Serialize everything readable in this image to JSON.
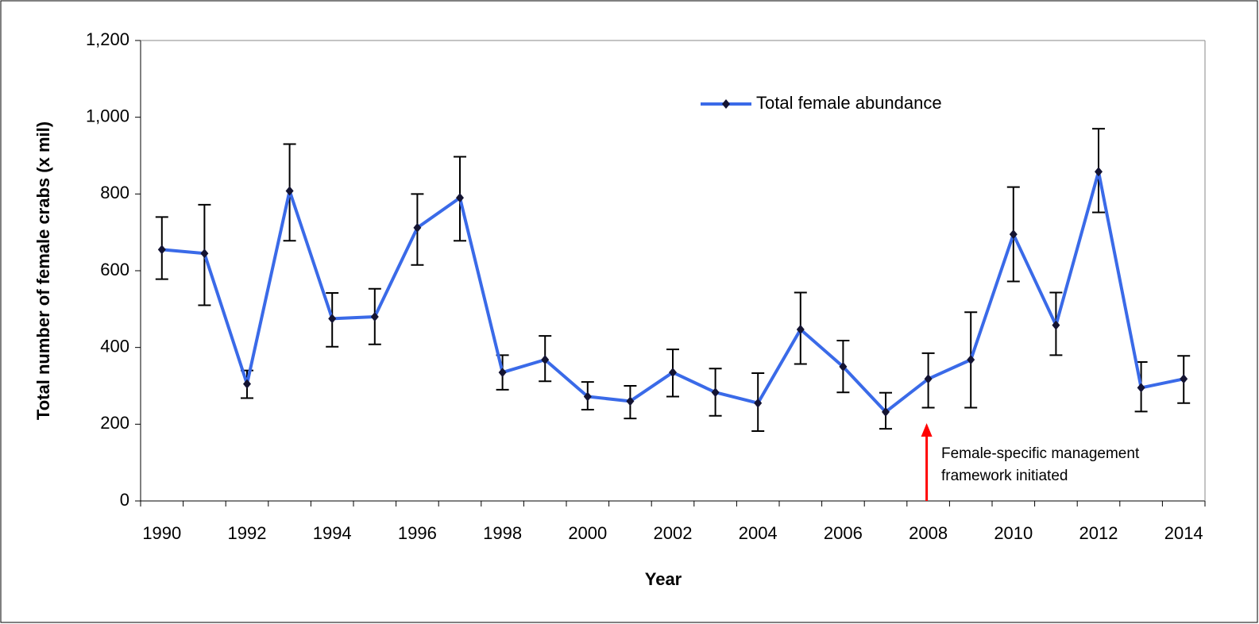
{
  "chart_data": {
    "type": "line",
    "title_y": "Total number of female crabs (x mil)",
    "title_x": "Year",
    "categories": [
      "1990",
      null,
      "1992",
      null,
      "1994",
      null,
      "1996",
      null,
      "1998",
      null,
      "2000",
      null,
      "2002",
      null,
      "2004",
      null,
      "2006",
      null,
      "2008",
      null,
      "2010",
      null,
      "2012",
      null,
      "2014"
    ],
    "series": [
      {
        "name": "Total female abundance",
        "color": "#3a6ae8",
        "marker_color": "#141432",
        "values": [
          655,
          645,
          305,
          808,
          475,
          480,
          712,
          790,
          335,
          368,
          272,
          260,
          335,
          283,
          255,
          447,
          350,
          232,
          318,
          368,
          695,
          458,
          858,
          295,
          318
        ],
        "lower": [
          578,
          510,
          268,
          678,
          402,
          408,
          615,
          678,
          290,
          312,
          238,
          215,
          272,
          222,
          182,
          357,
          283,
          188,
          243,
          243,
          572,
          380,
          752,
          233,
          255
        ],
        "upper": [
          740,
          772,
          340,
          930,
          542,
          553,
          800,
          897,
          380,
          430,
          310,
          300,
          395,
          345,
          333,
          543,
          418,
          282,
          385,
          492,
          818,
          543,
          970,
          362,
          378
        ]
      }
    ],
    "ylim": [
      0,
      1200
    ],
    "yticks": [
      0,
      200,
      400,
      600,
      800,
      {
        "value": 1000,
        "label": "1,000"
      },
      {
        "value": 1200,
        "label": "1,200"
      }
    ],
    "annotation": {
      "category": "2008",
      "color": "#ff0000",
      "lines": [
        "Female-specific management",
        "framework initiated"
      ]
    }
  }
}
